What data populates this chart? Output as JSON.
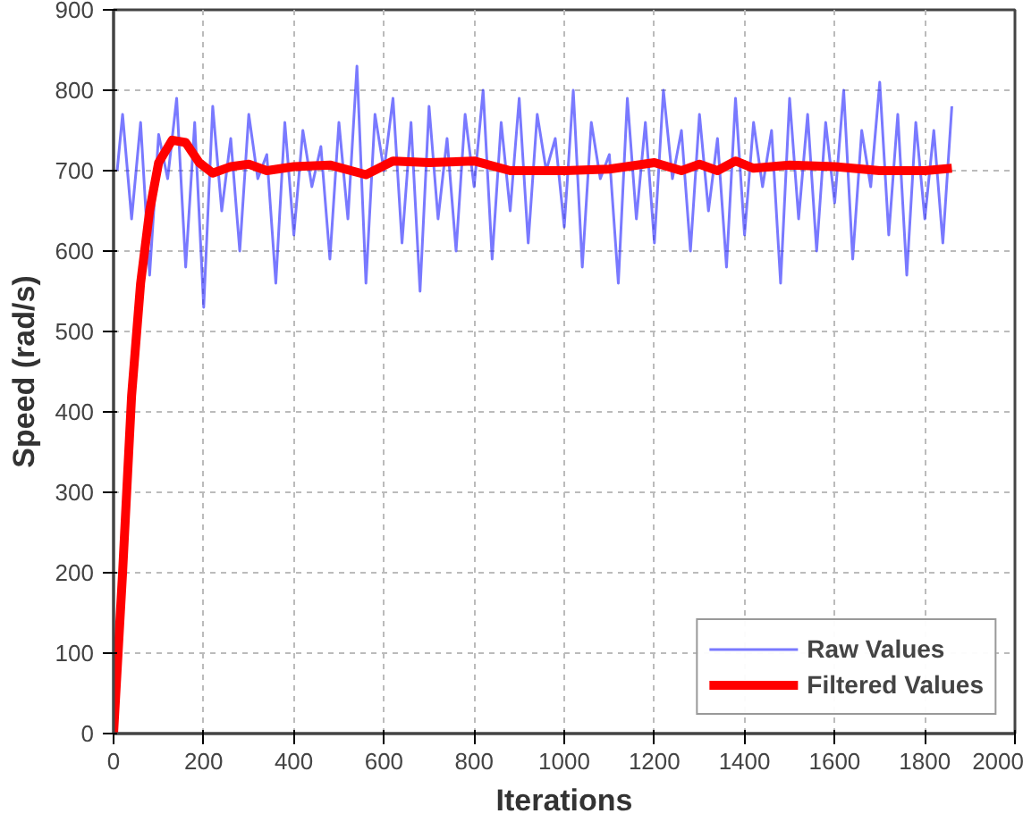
{
  "chart_data": {
    "type": "line",
    "xlabel": "Iterations",
    "ylabel": "Speed (rad/s)",
    "xlim": [
      0,
      2000
    ],
    "ylim": [
      0,
      900
    ],
    "xticks": [
      0,
      200,
      400,
      600,
      800,
      1000,
      1200,
      1400,
      1600,
      1800,
      2000
    ],
    "yticks": [
      0,
      100,
      200,
      300,
      400,
      500,
      600,
      700,
      800,
      900
    ],
    "grid": true,
    "legend": "bottom right",
    "line_style": "solid",
    "series": [
      {
        "name": "Raw Values",
        "color": "#2020ff",
        "x": [
          8,
          20,
          40,
          60,
          80,
          100,
          120,
          140,
          160,
          180,
          200,
          220,
          240,
          260,
          280,
          300,
          320,
          340,
          360,
          380,
          400,
          420,
          440,
          460,
          480,
          500,
          520,
          540,
          560,
          580,
          600,
          620,
          640,
          660,
          680,
          700,
          720,
          740,
          760,
          780,
          800,
          820,
          840,
          860,
          880,
          900,
          920,
          940,
          960,
          980,
          1000,
          1020,
          1040,
          1060,
          1080,
          1100,
          1120,
          1140,
          1160,
          1180,
          1200,
          1220,
          1240,
          1260,
          1280,
          1300,
          1320,
          1340,
          1360,
          1380,
          1400,
          1420,
          1440,
          1460,
          1480,
          1500,
          1520,
          1540,
          1560,
          1580,
          1600,
          1620,
          1640,
          1660,
          1680,
          1700,
          1720,
          1740,
          1760,
          1780,
          1800,
          1820,
          1840,
          1860
        ],
        "values": [
          700,
          770,
          640,
          760,
          570,
          745,
          690,
          790,
          580,
          760,
          530,
          780,
          650,
          740,
          600,
          770,
          690,
          720,
          560,
          760,
          620,
          750,
          680,
          730,
          590,
          760,
          640,
          830,
          560,
          770,
          700,
          790,
          610,
          760,
          550,
          780,
          640,
          740,
          600,
          770,
          680,
          800,
          590,
          760,
          650,
          790,
          610,
          770,
          700,
          740,
          630,
          800,
          580,
          760,
          690,
          720,
          560,
          790,
          640,
          760,
          610,
          800,
          690,
          750,
          600,
          770,
          650,
          740,
          580,
          790,
          620,
          760,
          680,
          750,
          560,
          790,
          640,
          770,
          600,
          760,
          660,
          800,
          590,
          750,
          680,
          810,
          620,
          770,
          570,
          760,
          640,
          750,
          610,
          780
        ]
      },
      {
        "name": "Filtered Values",
        "color": "#ff0000",
        "x": [
          0,
          20,
          40,
          60,
          80,
          100,
          130,
          160,
          190,
          220,
          260,
          300,
          340,
          400,
          480,
          560,
          620,
          700,
          800,
          880,
          1000,
          1100,
          1200,
          1260,
          1300,
          1340,
          1380,
          1420,
          1500,
          1600,
          1700,
          1800,
          1860
        ],
        "values": [
          0,
          200,
          420,
          560,
          650,
          710,
          738,
          735,
          710,
          697,
          705,
          708,
          700,
          705,
          707,
          695,
          712,
          710,
          712,
          700,
          700,
          702,
          710,
          700,
          708,
          700,
          712,
          703,
          707,
          705,
          700,
          700,
          703
        ]
      }
    ]
  }
}
